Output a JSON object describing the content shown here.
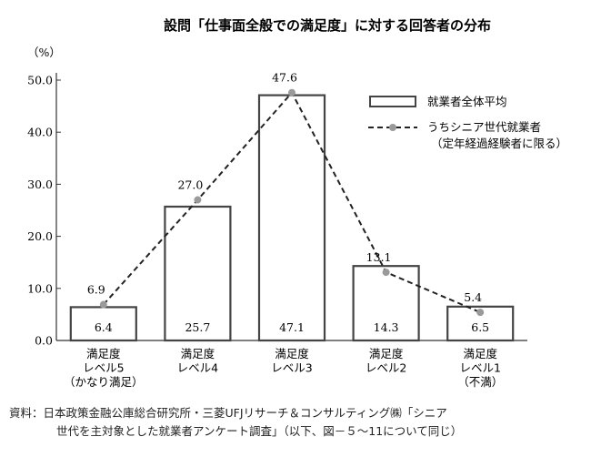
{
  "chart_data": {
    "type": "bar",
    "title": "設問「仕事面全般での満足度」に対する回答者の分布",
    "ylabel": "（%）",
    "ylim": [
      0,
      50
    ],
    "yticks": [
      "0.0",
      "10.0",
      "20.0",
      "30.0",
      "40.0",
      "50.0"
    ],
    "grid": false,
    "legend_position": "top-right",
    "categories": [
      [
        "満足度",
        "レベル5",
        "（かなり満足）"
      ],
      [
        "満足度",
        "レベル4"
      ],
      [
        "満足度",
        "レベル3"
      ],
      [
        "満足度",
        "レベル2"
      ],
      [
        "満足度",
        "レベル1",
        "（不満）"
      ]
    ],
    "series": [
      {
        "name": "就業者全体平均",
        "type": "bar",
        "values": [
          6.4,
          25.7,
          47.1,
          14.3,
          6.5
        ],
        "labels": [
          "6.4",
          "25.7",
          "47.1",
          "14.3",
          "6.5"
        ]
      },
      {
        "name": "うちシニア世代就業者",
        "name_line2": "（定年経過経験者に限る）",
        "type": "line",
        "style": "dashed",
        "marker_color": "#9a9a9a",
        "values": [
          6.9,
          27.0,
          47.6,
          13.1,
          5.4
        ],
        "labels": [
          "6.9",
          "27.0",
          "47.6",
          "13.1",
          "5.4"
        ]
      }
    ]
  },
  "source": {
    "line1": "資料：日本政策金融公庫総合研究所・三菱UFJリサーチ＆コンサルティング㈱「シニア",
    "line2": "世代を主対象とした就業者アンケート調査」（以下、図－５～11について同じ）"
  }
}
